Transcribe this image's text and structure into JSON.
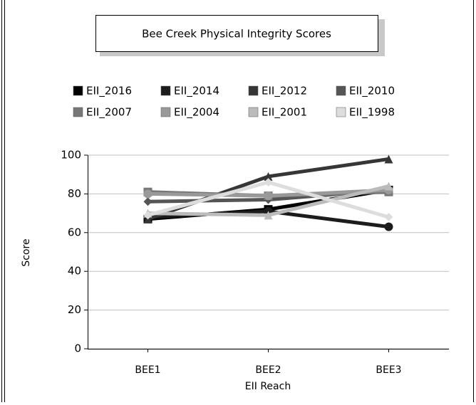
{
  "chart_data": {
    "type": "line",
    "title": "Bee Creek Physical Integrity Scores",
    "x_label": "EII Reach",
    "y_label": "Score",
    "categories": [
      "BEE1",
      "BEE2",
      "BEE3"
    ],
    "ylim": [
      0,
      100
    ],
    "yticks": [
      0,
      20,
      40,
      60,
      80,
      100
    ],
    "grid": true,
    "series": [
      {
        "name": "EII_2016",
        "color": "#000000",
        "values": [
          67,
          72,
          82
        ]
      },
      {
        "name": "EII_2014",
        "color": "#1c1c1c",
        "values": [
          68,
          71,
          63
        ]
      },
      {
        "name": "EII_2012",
        "color": "#363636",
        "values": [
          67,
          89,
          98
        ]
      },
      {
        "name": "EII_2010",
        "color": "#555555",
        "values": [
          76,
          77,
          82
        ]
      },
      {
        "name": "EII_2007",
        "color": "#777777",
        "values": [
          81,
          79,
          81
        ]
      },
      {
        "name": "EII_2004",
        "color": "#999999",
        "values": [
          80,
          79,
          82
        ]
      },
      {
        "name": "EII_2001",
        "color": "#bbbbbb",
        "values": [
          70,
          69,
          84
        ]
      },
      {
        "name": "EII_1998",
        "color": "#dddddd",
        "values": [
          69,
          86,
          68
        ]
      }
    ]
  }
}
